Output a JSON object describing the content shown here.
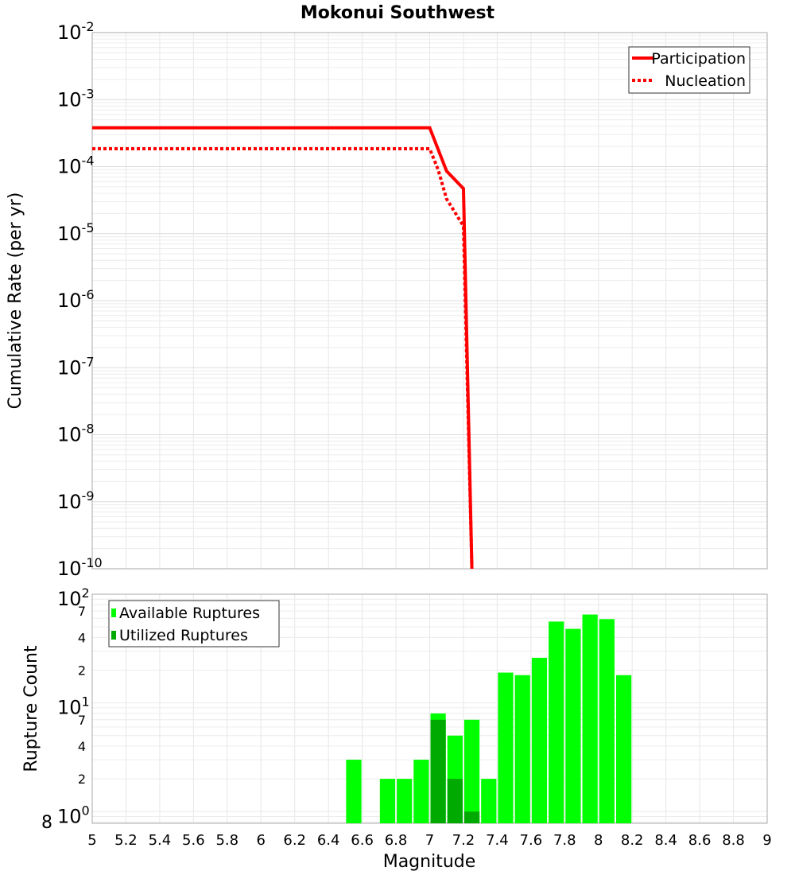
{
  "chart_data": [
    {
      "type": "line",
      "title": "Mokonui Southwest",
      "xlabel": "Magnitude",
      "ylabel": "Cumulative Rate (per yr)",
      "yscale": "log",
      "xlim": [
        5,
        9
      ],
      "ylim": [
        1e-10,
        0.01
      ],
      "ytick_exponents": [
        -2,
        -3,
        -4,
        -5,
        -6,
        -7,
        -8,
        -9,
        -10
      ],
      "grid": true,
      "legend_position": "top-right",
      "series": [
        {
          "name": "Participation",
          "style": "solid",
          "color": "#ff0000",
          "x": [
            5.0,
            7.0,
            7.1,
            7.2,
            7.25
          ],
          "y": [
            0.00038,
            0.00038,
            8.6e-05,
            4.7e-05,
            1e-10
          ]
        },
        {
          "name": "Nucleation",
          "style": "dotted",
          "color": "#ff0000",
          "x": [
            5.0,
            7.0,
            7.05,
            7.1,
            7.2,
            7.25
          ],
          "y": [
            0.000185,
            0.000185,
            9e-05,
            3.3e-05,
            1.3e-05,
            1e-10
          ]
        }
      ]
    },
    {
      "type": "bar",
      "xlabel": "Magnitude",
      "ylabel": "Rupture Count",
      "yscale": "log",
      "xlim": [
        5,
        9
      ],
      "ylim": [
        0.78,
        100
      ],
      "ytick_exponents": [
        2,
        1,
        0
      ],
      "minor_tick_labels": [
        "7",
        "4",
        "2"
      ],
      "bottom_tick_label": "8",
      "xticks": [
        "5",
        "5.2",
        "5.4",
        "5.6",
        "5.8",
        "6",
        "6.2",
        "6.4",
        "6.6",
        "6.8",
        "7",
        "7.2",
        "7.4",
        "7.6",
        "7.8",
        "8",
        "8.2",
        "8.4",
        "8.6",
        "8.8",
        "9"
      ],
      "grid": true,
      "legend_position": "top-left",
      "bin_width": 0.1,
      "x": [
        6.55,
        6.75,
        6.85,
        6.95,
        7.05,
        7.15,
        7.25,
        7.35,
        7.45,
        7.55,
        7.65,
        7.75,
        7.85,
        7.95,
        8.05,
        8.15
      ],
      "series": [
        {
          "name": "Available Ruptures",
          "color": "#00ff00",
          "values": [
            3,
            2,
            2,
            3,
            8,
            5,
            7,
            2,
            19,
            18,
            26,
            56,
            48,
            65,
            59,
            18
          ]
        },
        {
          "name": "Utilized Ruptures",
          "color": "#00aa00",
          "values": [
            0,
            0,
            0,
            0,
            7,
            2,
            1,
            0,
            0,
            0,
            0,
            0,
            0,
            0,
            0,
            0
          ]
        }
      ]
    }
  ]
}
